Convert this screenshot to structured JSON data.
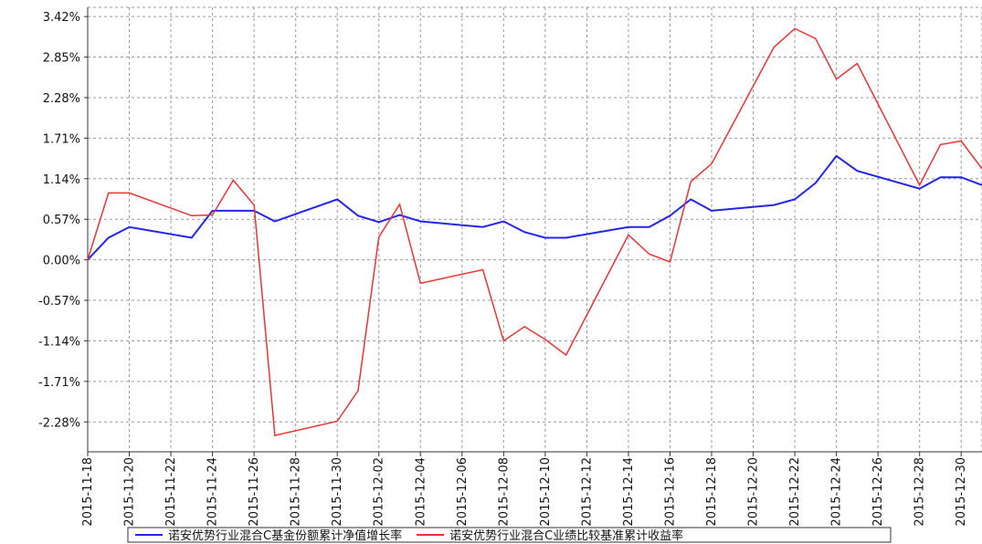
{
  "chart_data": {
    "type": "line",
    "x": [
      "2015-11-18",
      "2015-11-19",
      "2015-11-20",
      "2015-11-23",
      "2015-11-24",
      "2015-11-25",
      "2015-11-26",
      "2015-11-27",
      "2015-11-30",
      "2015-12-01",
      "2015-12-02",
      "2015-12-03",
      "2015-12-04",
      "2015-12-07",
      "2015-12-08",
      "2015-12-09",
      "2015-12-10",
      "2015-12-11",
      "2015-12-14",
      "2015-12-15",
      "2015-12-16",
      "2015-12-17",
      "2015-12-18",
      "2015-12-21",
      "2015-12-22",
      "2015-12-23",
      "2015-12-24",
      "2015-12-25",
      "2015-12-28",
      "2015-12-29",
      "2015-12-30",
      "2015-12-31"
    ],
    "series": [
      {
        "name": "诺安优势行业混合C基金份额累计净值增长率",
        "color": "#2424f0",
        "values": [
          0.0,
          0.31,
          0.46,
          0.31,
          0.69,
          0.69,
          0.69,
          0.54,
          0.85,
          0.62,
          0.53,
          0.63,
          0.54,
          0.46,
          0.54,
          0.39,
          0.31,
          0.31,
          0.46,
          0.46,
          0.62,
          0.85,
          0.69,
          0.77,
          0.85,
          1.08,
          1.46,
          1.25,
          1.0,
          1.16,
          1.16,
          1.05
        ]
      },
      {
        "name": "诺安优势行业混合C业绩比较基准累计收益率",
        "color": "#f03232",
        "values": [
          0.0,
          0.94,
          0.94,
          0.62,
          0.63,
          1.12,
          0.77,
          -2.47,
          -2.27,
          -1.84,
          0.32,
          0.78,
          -0.33,
          -0.14,
          -1.14,
          -0.94,
          -1.12,
          -1.34,
          0.35,
          0.08,
          -0.03,
          1.1,
          1.35,
          2.99,
          3.25,
          3.11,
          2.54,
          2.76,
          1.05,
          1.62,
          1.67,
          1.28
        ]
      }
    ],
    "xlim": [
      "2015-11-18",
      "2015-12-31"
    ],
    "xticks": [
      "2015-11-18",
      "2015-11-20",
      "2015-11-22",
      "2015-11-24",
      "2015-11-26",
      "2015-11-28",
      "2015-11-30",
      "2015-12-02",
      "2015-12-04",
      "2015-12-06",
      "2015-12-08",
      "2015-12-10",
      "2015-12-12",
      "2015-12-14",
      "2015-12-16",
      "2015-12-18",
      "2015-12-20",
      "2015-12-22",
      "2015-12-24",
      "2015-12-26",
      "2015-12-28",
      "2015-12-30"
    ],
    "ylim": [
      -2.7,
      3.55
    ],
    "yticks": [
      {
        "value": -2.28,
        "label": "-2.28%"
      },
      {
        "value": -1.71,
        "label": "-1.71%"
      },
      {
        "value": -1.14,
        "label": "-1.14%"
      },
      {
        "value": -0.57,
        "label": "-0.57%"
      },
      {
        "value": 0,
        "label": "0.00%"
      },
      {
        "value": 0.57,
        "label": "0.57%"
      },
      {
        "value": 1.14,
        "label": "1.14%"
      },
      {
        "value": 1.71,
        "label": "1.71%"
      },
      {
        "value": 2.28,
        "label": "2.28%"
      },
      {
        "value": 2.85,
        "label": "2.85%"
      },
      {
        "value": 3.42,
        "label": "3.42%"
      }
    ],
    "grid": true
  }
}
